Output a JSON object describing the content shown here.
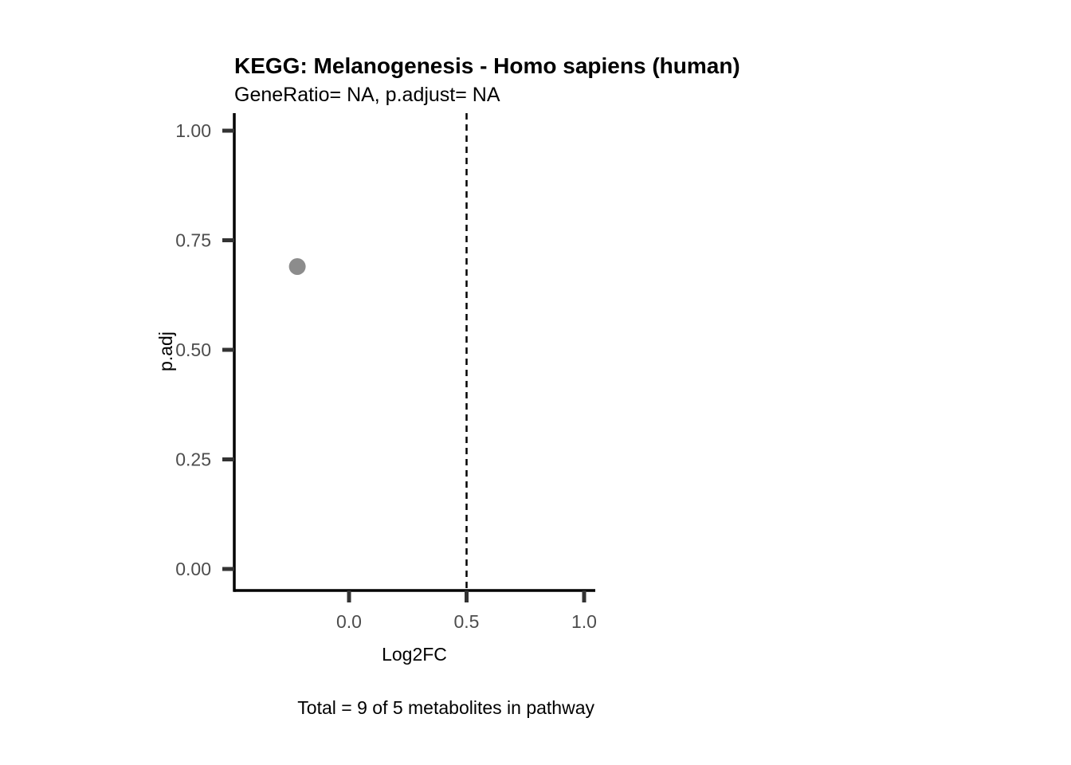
{
  "chart_data": {
    "type": "scatter",
    "title": "KEGG: Melanogenesis - Homo sapiens (human)",
    "subtitle": "GeneRatio= NA, p.adjust= NA",
    "xlabel": "Log2FC",
    "ylabel": "p.adj",
    "caption": "Total = 9 of 5 metabolites in pathway",
    "xlim": [
      -0.5,
      1.05
    ],
    "ylim": [
      -0.05,
      1.05
    ],
    "x_ticks": [
      0.0,
      0.5,
      1.0
    ],
    "x_tick_labels": [
      "0.0",
      "0.5",
      "1.0"
    ],
    "y_ticks": [
      0.0,
      0.25,
      0.5,
      0.75,
      1.0
    ],
    "y_tick_labels": [
      "0.00",
      "0.25",
      "0.50",
      "0.75",
      "1.00"
    ],
    "points": [
      {
        "x": -0.22,
        "y": 0.69
      }
    ],
    "reference_line": {
      "axis": "x",
      "value": 0.5,
      "style": "dashed",
      "color": "#000000"
    },
    "point_color": "#8c8c8c",
    "axis_color": "#000000",
    "tick_color": "#333333",
    "grid": false,
    "legend": "none"
  }
}
